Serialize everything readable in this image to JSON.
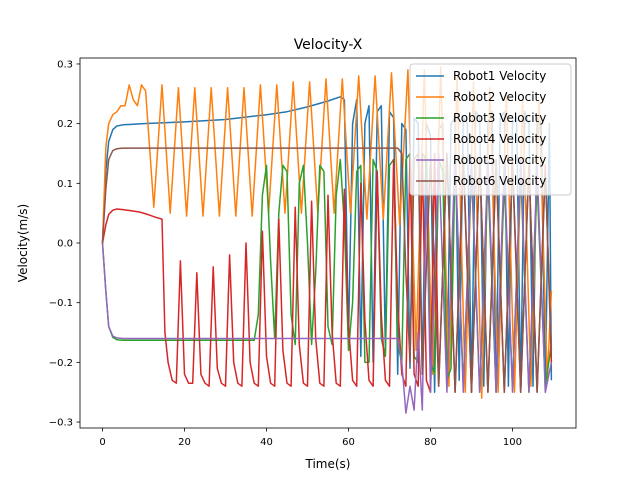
{
  "chart_data": {
    "type": "line",
    "title": "Velocity-X",
    "xlabel": "Time(s)",
    "ylabel": "Velocity(m/s)",
    "xlim": [
      -5.5,
      115.5
    ],
    "ylim": [
      -0.31,
      0.31
    ],
    "xticks": [
      0,
      20,
      40,
      60,
      80,
      100
    ],
    "xtick_labels": [
      "0",
      "20",
      "40",
      "60",
      "80",
      "100"
    ],
    "yticks": [
      -0.3,
      -0.2,
      -0.1,
      0.0,
      0.1,
      0.2,
      0.3
    ],
    "ytick_labels": [
      "−0.3",
      "−0.2",
      "−0.1",
      "0.0",
      "0.1",
      "0.2",
      "0.3"
    ],
    "grid": false,
    "legend_position": "top-right",
    "series": [
      {
        "name": "Robot1 Velocity",
        "color": "#1f77b4",
        "x": [
          0,
          0.8,
          1.5,
          2.5,
          3.5,
          5,
          10,
          20,
          30,
          40,
          45,
          50,
          55,
          58,
          59,
          60,
          61,
          62,
          63,
          64,
          65,
          66,
          67,
          68,
          69,
          70,
          71,
          72,
          73,
          74,
          75,
          76,
          77,
          78,
          79,
          80,
          81,
          82,
          83,
          84,
          85,
          86,
          87,
          88,
          89,
          90,
          91,
          92,
          93,
          94,
          95,
          96,
          97,
          98,
          99,
          100,
          101,
          102,
          103,
          104,
          105,
          106,
          107,
          108,
          109,
          109.5
        ],
        "y": [
          0,
          0.12,
          0.17,
          0.19,
          0.196,
          0.198,
          0.2,
          0.203,
          0.207,
          0.215,
          0.22,
          0.228,
          0.238,
          0.245,
          0.24,
          -0.16,
          0.2,
          0.24,
          -0.19,
          0.2,
          0.23,
          -0.2,
          0.22,
          0.23,
          -0.18,
          0.22,
          0.21,
          -0.22,
          0.2,
          0.19,
          -0.21,
          0.21,
          0.2,
          -0.22,
          0.2,
          0.18,
          -0.25,
          0.19,
          0.2,
          -0.24,
          0.2,
          0.21,
          -0.23,
          0.21,
          0.2,
          -0.25,
          0.22,
          0.21,
          -0.24,
          0.2,
          0.22,
          -0.25,
          0.21,
          0.22,
          -0.24,
          0.2,
          0.21,
          -0.25,
          0.22,
          0.2,
          -0.24,
          0.21,
          0.2,
          -0.25,
          0.2,
          -0.23
        ]
      },
      {
        "name": "Robot2 Velocity",
        "color": "#ff7f0e",
        "x": [
          0,
          0.8,
          1.5,
          2.5,
          3.5,
          4.5,
          5.5,
          6.5,
          7.5,
          8.5,
          9.5,
          10.5,
          12.5,
          14.5,
          16.5,
          18.5,
          20.5,
          22.5,
          24.5,
          26.5,
          28.5,
          30.5,
          32.5,
          34.5,
          36.5,
          38.5,
          40.5,
          42.5,
          44.5,
          46.5,
          48.5,
          50.5,
          52.5,
          54.5,
          56.5,
          58.5,
          60.5,
          62.5,
          64.5,
          66.5,
          68.5,
          70.5,
          72.5,
          74.5,
          76.5,
          78.5,
          80.5,
          82.5,
          84.5,
          86.5,
          88.5,
          90.5,
          92.5,
          94.5,
          96.5,
          98.5,
          100.5,
          102.5,
          104.5,
          106.5,
          108.5,
          109.5
        ],
        "y": [
          0,
          0.16,
          0.2,
          0.215,
          0.22,
          0.23,
          0.23,
          0.265,
          0.24,
          0.23,
          0.265,
          0.255,
          0.06,
          0.265,
          0.05,
          0.26,
          0.045,
          0.26,
          0.045,
          0.26,
          0.045,
          0.26,
          0.045,
          0.26,
          0.045,
          0.265,
          0.05,
          0.265,
          0.05,
          0.27,
          0.05,
          0.27,
          0.05,
          0.275,
          0.05,
          0.275,
          0.05,
          0.28,
          0.04,
          0.28,
          0.04,
          0.285,
          0.03,
          0.29,
          -0.18,
          0.29,
          -0.22,
          0.295,
          -0.24,
          0.28,
          -0.25,
          0.27,
          -0.26,
          0.26,
          -0.25,
          0.25,
          -0.25,
          0.24,
          -0.24,
          0.24,
          -0.23,
          -0.08
        ]
      },
      {
        "name": "Robot3 Velocity",
        "color": "#2ca02c",
        "x": [
          0,
          0.8,
          1.5,
          2.5,
          3.5,
          5,
          10,
          20,
          30,
          37,
          38,
          39,
          40,
          41,
          42,
          43,
          44,
          45,
          46,
          47,
          48,
          49,
          50,
          51,
          52,
          53,
          54,
          55,
          56,
          57,
          58,
          59,
          60,
          61,
          62,
          63,
          64,
          65,
          66,
          67,
          68,
          69,
          70,
          71,
          72,
          73,
          74,
          75,
          76,
          77,
          78,
          79,
          80,
          81,
          82,
          83,
          84,
          85,
          86,
          88,
          90,
          92,
          94,
          96,
          98,
          100,
          102,
          104,
          106,
          108,
          109.5
        ],
        "y": [
          0,
          -0.08,
          -0.14,
          -0.158,
          -0.162,
          -0.163,
          -0.163,
          -0.163,
          -0.163,
          -0.163,
          -0.12,
          0.08,
          0.13,
          -0.03,
          -0.16,
          0.05,
          0.13,
          0.12,
          -0.12,
          -0.17,
          0.1,
          0.13,
          0.0,
          -0.17,
          -0.05,
          0.13,
          0.12,
          -0.14,
          -0.17,
          0.08,
          0.14,
          0.03,
          -0.18,
          -0.1,
          0.12,
          0.13,
          -0.2,
          -0.2,
          0.14,
          0.12,
          -0.16,
          -0.19,
          0.13,
          0.14,
          -0.17,
          -0.2,
          0.14,
          0.15,
          -0.19,
          -0.2,
          0.15,
          0.14,
          -0.2,
          -0.22,
          0.14,
          0.12,
          -0.23,
          -0.21,
          0.14,
          -0.24,
          0.12,
          -0.25,
          0.11,
          -0.25,
          0.1,
          -0.24,
          0.12,
          -0.25,
          0.1,
          -0.24,
          -0.17
        ]
      },
      {
        "name": "Robot4 Velocity",
        "color": "#d62728",
        "x": [
          0,
          0.8,
          1.5,
          2.5,
          3.5,
          5,
          7,
          9,
          11,
          13,
          14.5,
          15.2,
          16,
          17,
          18,
          19,
          20,
          21,
          22,
          23,
          24,
          25,
          26,
          27,
          28,
          29,
          30,
          31,
          32,
          33,
          34,
          35,
          36,
          37,
          38,
          39,
          40,
          41,
          42,
          43,
          44,
          45,
          46,
          47,
          48,
          49,
          50,
          51,
          52,
          53,
          54,
          55,
          56,
          57,
          58,
          59,
          60,
          61,
          62,
          63,
          64,
          65,
          66,
          67,
          68,
          69,
          70,
          71,
          72,
          73,
          74,
          75,
          76,
          77,
          78,
          79,
          80,
          81,
          82,
          84,
          86,
          88,
          90,
          92,
          94,
          96,
          98,
          100,
          102,
          104,
          106,
          108,
          109.5
        ],
        "y": [
          0,
          0.03,
          0.048,
          0.055,
          0.057,
          0.056,
          0.054,
          0.052,
          0.048,
          0.043,
          0.04,
          -0.15,
          -0.2,
          -0.23,
          -0.235,
          -0.03,
          -0.22,
          -0.235,
          -0.235,
          -0.05,
          -0.22,
          -0.235,
          -0.24,
          -0.04,
          -0.21,
          -0.235,
          -0.24,
          -0.02,
          -0.2,
          -0.235,
          -0.24,
          0.0,
          -0.2,
          -0.235,
          -0.24,
          0.02,
          -0.19,
          -0.235,
          -0.24,
          0.04,
          -0.18,
          -0.235,
          -0.24,
          0.06,
          -0.17,
          -0.235,
          -0.24,
          0.07,
          -0.16,
          -0.235,
          -0.24,
          0.08,
          -0.15,
          -0.235,
          -0.24,
          0.09,
          -0.14,
          -0.23,
          -0.24,
          0.1,
          -0.13,
          -0.23,
          -0.24,
          0.12,
          -0.12,
          -0.23,
          -0.24,
          0.14,
          -0.1,
          -0.22,
          -0.24,
          0.15,
          -0.22,
          -0.24,
          0.15,
          -0.23,
          -0.25,
          0.15,
          -0.24,
          0.15,
          -0.25,
          0.14,
          -0.25,
          0.14,
          -0.25,
          0.13,
          -0.25,
          0.14,
          -0.25,
          0.13,
          -0.25,
          0.13,
          -0.2
        ]
      },
      {
        "name": "Robot5 Velocity",
        "color": "#9467bd",
        "x": [
          0,
          0.8,
          1.5,
          2.5,
          3.5,
          5,
          10,
          20,
          30,
          40,
          50,
          60,
          65,
          70,
          72,
          73,
          74,
          75,
          76,
          77,
          78,
          79,
          80,
          82,
          84,
          86,
          88,
          90,
          92,
          94,
          96,
          98,
          100,
          102,
          104,
          106,
          108,
          109.5
        ],
        "y": [
          0,
          -0.08,
          -0.14,
          -0.156,
          -0.159,
          -0.16,
          -0.16,
          -0.16,
          -0.16,
          -0.16,
          -0.16,
          -0.16,
          -0.16,
          -0.16,
          -0.16,
          -0.2,
          -0.285,
          -0.24,
          -0.28,
          -0.15,
          -0.28,
          0.1,
          -0.25,
          0.15,
          -0.25,
          0.15,
          -0.25,
          0.14,
          -0.25,
          0.14,
          -0.25,
          0.13,
          -0.25,
          0.14,
          -0.25,
          0.13,
          -0.25,
          -0.2
        ]
      },
      {
        "name": "Robot6 Velocity",
        "color": "#8c564b",
        "x": [
          0,
          0.8,
          1.5,
          2.5,
          3.5,
          5,
          10,
          20,
          30,
          40,
          50,
          60,
          65,
          70,
          72,
          73,
          74,
          75,
          76,
          77,
          78,
          80,
          82,
          84,
          86,
          88,
          90,
          92,
          94,
          96,
          98,
          100,
          102,
          104,
          106,
          108,
          109.5
        ],
        "y": [
          0,
          0.09,
          0.14,
          0.155,
          0.158,
          0.159,
          0.159,
          0.159,
          0.159,
          0.159,
          0.159,
          0.159,
          0.159,
          0.159,
          0.159,
          0.15,
          -0.05,
          -0.2,
          0.14,
          0.15,
          -0.22,
          0.14,
          -0.24,
          0.15,
          -0.25,
          0.15,
          -0.25,
          0.14,
          -0.25,
          0.14,
          -0.25,
          0.13,
          -0.25,
          0.13,
          -0.25,
          0.12,
          -0.18
        ]
      }
    ]
  }
}
